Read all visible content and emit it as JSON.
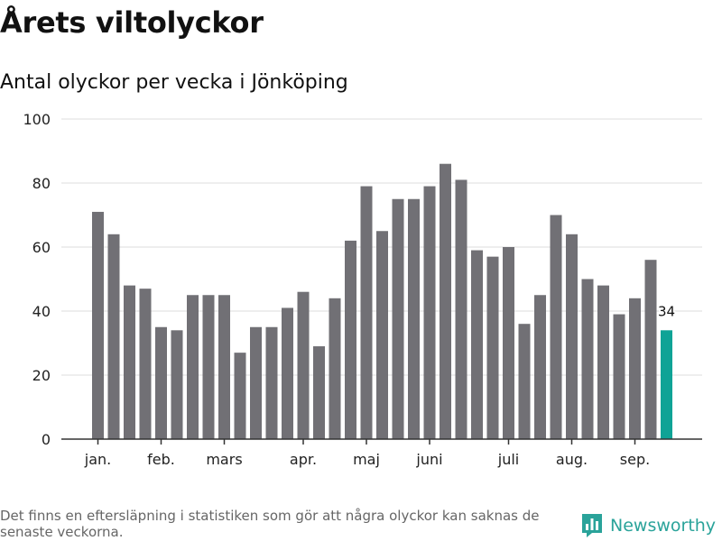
{
  "title": "Årets viltolyckor",
  "subtitle": "Antal olyckor per vecka i Jönköping",
  "footnote": "Det finns en eftersläpning i statistiken som gör att några olyckor kan saknas de senaste veckorna.",
  "brand": {
    "name": "Newsworthy",
    "icon": "bar-chart-logo-icon"
  },
  "colors": {
    "bar": "#717075",
    "highlight": "#0fa396",
    "grid": "#dddddd",
    "axis": "#333333",
    "brand": "#2aa39a"
  },
  "chart_data": {
    "type": "bar",
    "title": "",
    "xlabel": "",
    "ylabel": "",
    "ylim": [
      0,
      100
    ],
    "y_ticks": [
      0,
      20,
      40,
      60,
      80,
      100
    ],
    "grid": true,
    "values": [
      71,
      64,
      48,
      47,
      35,
      34,
      45,
      45,
      45,
      27,
      35,
      35,
      41,
      46,
      29,
      44,
      62,
      79,
      65,
      75,
      75,
      79,
      86,
      81,
      59,
      57,
      60,
      36,
      45,
      70,
      64,
      50,
      48,
      39,
      44,
      56,
      34
    ],
    "month_labels": [
      {
        "label": "jan.",
        "at_bar": 0
      },
      {
        "label": "feb.",
        "at_bar": 4
      },
      {
        "label": "mars",
        "at_bar": 8
      },
      {
        "label": "apr.",
        "at_bar": 13
      },
      {
        "label": "maj",
        "at_bar": 17
      },
      {
        "label": "juni",
        "at_bar": 21
      },
      {
        "label": "juli",
        "at_bar": 26
      },
      {
        "label": "aug.",
        "at_bar": 30
      },
      {
        "label": "sep.",
        "at_bar": 34
      }
    ],
    "highlight_index": 36,
    "highlight_label": "34"
  }
}
